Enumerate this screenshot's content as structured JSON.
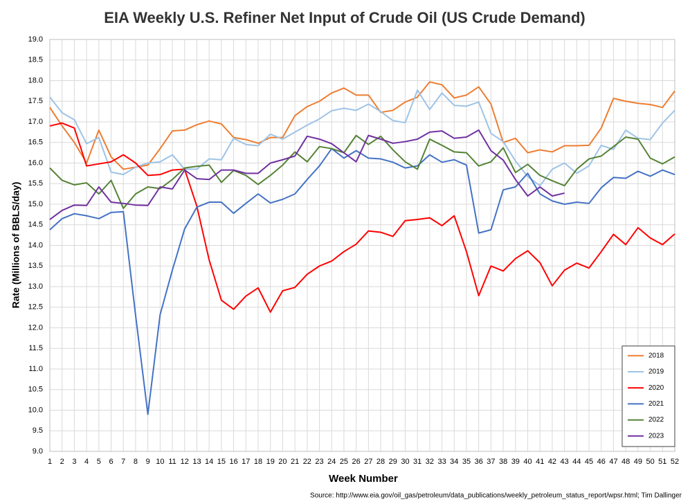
{
  "chart_data": {
    "type": "line",
    "title": "EIA Weekly U.S. Refiner Net Input of Crude Oil (US Crude Demand)",
    "x_label": "Week Number",
    "y_label": "Rate (Millions of BBLS/day)",
    "source": "Source: http://www.eia.gov/oil_gas/petroleum/data_publications/weekly_petroleum_status_report/wpsr.html; Tim Dallinger",
    "x": [
      1,
      2,
      3,
      4,
      5,
      6,
      7,
      8,
      9,
      10,
      11,
      12,
      13,
      14,
      15,
      16,
      17,
      18,
      19,
      20,
      21,
      22,
      23,
      24,
      25,
      26,
      27,
      28,
      29,
      30,
      31,
      32,
      33,
      34,
      35,
      36,
      37,
      38,
      39,
      40,
      41,
      42,
      43,
      44,
      45,
      46,
      47,
      48,
      49,
      50,
      51,
      52
    ],
    "xlim": [
      1,
      52
    ],
    "xticks": [
      1,
      2,
      3,
      4,
      5,
      6,
      7,
      8,
      9,
      10,
      11,
      12,
      13,
      14,
      15,
      16,
      17,
      18,
      19,
      20,
      21,
      22,
      23,
      24,
      25,
      26,
      27,
      28,
      29,
      30,
      31,
      32,
      33,
      34,
      35,
      36,
      37,
      38,
      39,
      40,
      41,
      42,
      43,
      44,
      45,
      46,
      47,
      48,
      49,
      50,
      51,
      52
    ],
    "ylim": [
      9,
      19
    ],
    "yticks": [
      {
        "value": 9,
        "label": "9.0"
      },
      9.5,
      {
        "value": 10,
        "label": "10.0"
      },
      10.5,
      {
        "value": 11,
        "label": "11.0"
      },
      11.5,
      {
        "value": 12,
        "label": "12.0"
      },
      12.5,
      {
        "value": 13,
        "label": "13.0"
      },
      13.5,
      {
        "value": 14,
        "label": "14.0"
      },
      14.5,
      {
        "value": 15,
        "label": "15.0"
      },
      15.5,
      {
        "value": 16,
        "label": "16.0"
      },
      16.5,
      {
        "value": 17,
        "label": "17.0"
      },
      17.5,
      {
        "value": 18,
        "label": "18.0"
      },
      18.5,
      {
        "value": 19,
        "label": "19.0"
      }
    ],
    "grid": true,
    "legend": "lower right",
    "series": [
      {
        "name": "2018",
        "color": "#ed7d31",
        "values": [
          17.35,
          16.9,
          16.5,
          16.0,
          16.8,
          16.15,
          15.85,
          15.9,
          15.95,
          16.35,
          16.78,
          16.8,
          16.93,
          17.02,
          16.95,
          16.62,
          16.57,
          16.48,
          16.62,
          16.62,
          17.15,
          17.37,
          17.5,
          17.7,
          17.82,
          17.65,
          17.65,
          17.23,
          17.28,
          17.48,
          17.6,
          17.97,
          17.9,
          17.58,
          17.65,
          17.85,
          17.43,
          16.5,
          16.6,
          16.25,
          16.32,
          16.27,
          16.42,
          16.42,
          16.43,
          16.85,
          17.57,
          17.5,
          17.45,
          17.42,
          17.35,
          17.75
        ]
      },
      {
        "name": "2019",
        "color": "#9dc3e6",
        "values": [
          17.6,
          17.22,
          17.05,
          16.47,
          16.62,
          15.78,
          15.72,
          15.9,
          16.0,
          16.03,
          16.2,
          15.85,
          15.85,
          16.1,
          16.08,
          16.6,
          16.45,
          16.42,
          16.7,
          16.58,
          16.75,
          16.92,
          17.07,
          17.27,
          17.33,
          17.28,
          17.43,
          17.25,
          17.03,
          16.98,
          17.77,
          17.3,
          17.7,
          17.4,
          17.38,
          17.48,
          16.72,
          16.52,
          16.05,
          15.67,
          15.45,
          15.85,
          16.0,
          15.75,
          15.93,
          16.43,
          16.33,
          16.8,
          16.6,
          16.57,
          16.97,
          17.28
        ]
      },
      {
        "name": "2020",
        "color": "#ff0000",
        "values": [
          16.9,
          16.97,
          16.85,
          15.93,
          15.98,
          16.03,
          16.2,
          16.0,
          15.7,
          15.72,
          15.83,
          15.85,
          14.95,
          13.65,
          12.67,
          12.45,
          12.77,
          12.97,
          12.38,
          12.9,
          12.98,
          13.3,
          13.5,
          13.62,
          13.85,
          14.03,
          14.35,
          14.32,
          14.22,
          14.6,
          14.63,
          14.67,
          14.48,
          14.72,
          13.85,
          12.78,
          13.5,
          13.38,
          13.68,
          13.87,
          13.58,
          13.02,
          13.4,
          13.57,
          13.45,
          13.85,
          14.27,
          14.02,
          14.43,
          14.18,
          14.02,
          14.28
        ]
      },
      {
        "name": "2021",
        "color": "#4472c4",
        "values": [
          14.38,
          14.65,
          14.77,
          14.72,
          14.65,
          14.8,
          14.82,
          12.3,
          9.9,
          12.32,
          13.4,
          14.4,
          14.93,
          15.05,
          15.05,
          14.78,
          15.02,
          15.25,
          15.03,
          15.12,
          15.25,
          15.6,
          15.93,
          16.35,
          16.12,
          16.3,
          16.12,
          16.1,
          16.02,
          15.88,
          15.93,
          16.2,
          16.02,
          16.08,
          15.95,
          14.3,
          14.38,
          15.35,
          15.42,
          15.75,
          15.25,
          15.08,
          15.0,
          15.05,
          15.02,
          15.4,
          15.65,
          15.63,
          15.8,
          15.68,
          15.83,
          15.72
        ]
      },
      {
        "name": "2022",
        "color": "#548235",
        "values": [
          15.88,
          15.58,
          15.47,
          15.52,
          15.25,
          15.58,
          14.9,
          15.25,
          15.42,
          15.38,
          15.6,
          15.88,
          15.92,
          15.95,
          15.53,
          15.82,
          15.7,
          15.48,
          15.7,
          15.95,
          16.27,
          16.03,
          16.4,
          16.35,
          16.25,
          16.67,
          16.45,
          16.65,
          16.32,
          16.03,
          15.85,
          16.58,
          16.43,
          16.27,
          16.25,
          15.93,
          16.03,
          16.37,
          15.77,
          15.97,
          15.7,
          15.57,
          15.45,
          15.85,
          16.1,
          16.17,
          16.4,
          16.63,
          16.58,
          16.12,
          15.98,
          16.15
        ]
      },
      {
        "name": "2023",
        "color": "#7030a0",
        "values": [
          14.63,
          14.85,
          14.98,
          14.97,
          15.42,
          15.05,
          15.02,
          14.98,
          14.97,
          15.42,
          15.37,
          15.83,
          15.62,
          15.6,
          15.83,
          15.83,
          15.75,
          15.75,
          16.0,
          16.08,
          16.17,
          16.65,
          16.58,
          16.47,
          16.25,
          16.03,
          16.67,
          16.58,
          16.48,
          16.52,
          16.58,
          16.75,
          16.78,
          16.6,
          16.63,
          16.8,
          16.3,
          16.07,
          15.6,
          15.2,
          15.42,
          15.2,
          15.27,
          null,
          null,
          null,
          null,
          null,
          null,
          null,
          null,
          null
        ]
      }
    ]
  }
}
